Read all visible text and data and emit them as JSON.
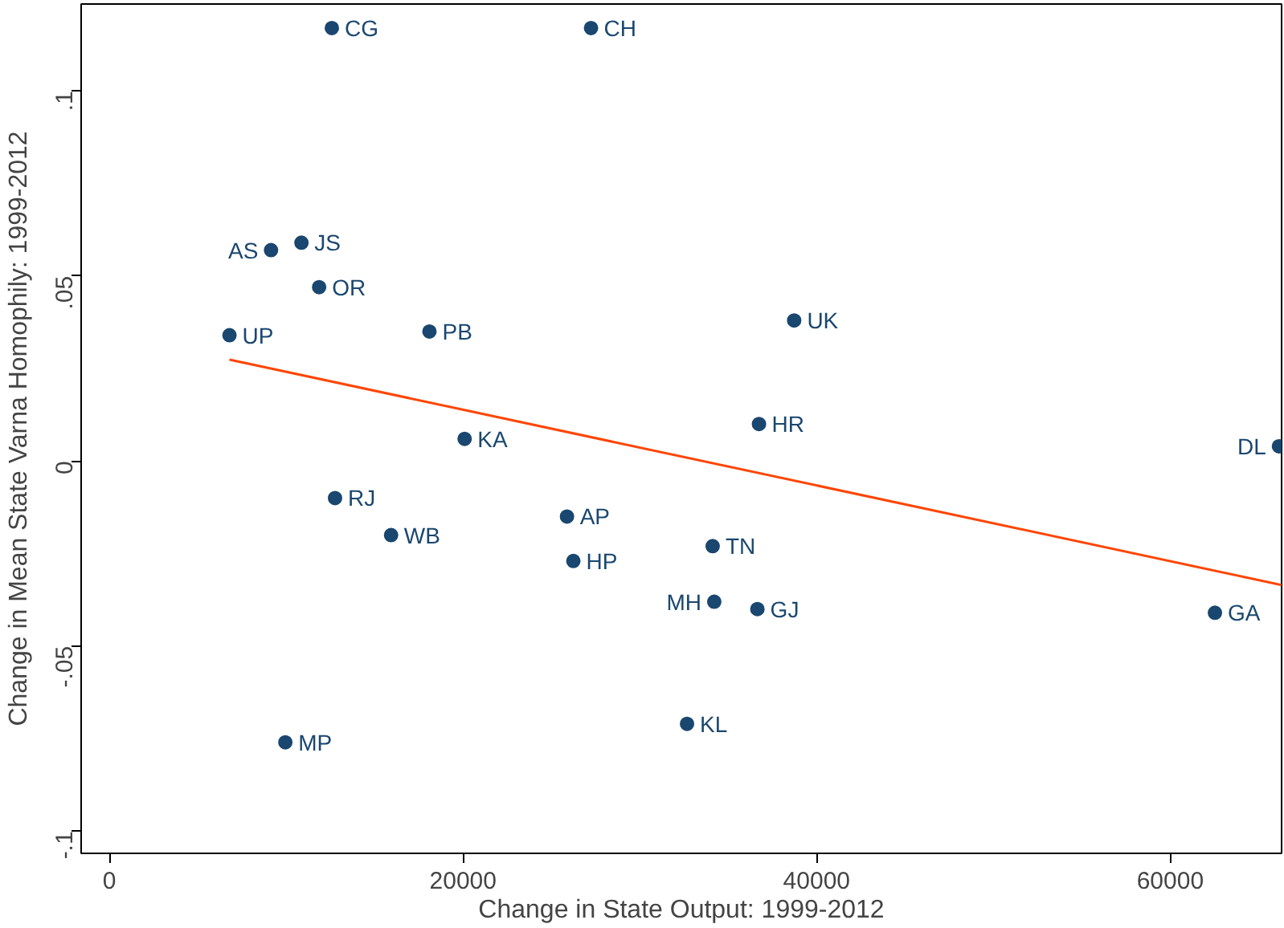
{
  "chart_data": {
    "type": "scatter",
    "xlabel": "Change in State Output: 1999-2012",
    "ylabel": "Change in Mean State Varna Homophily: 1999-2012",
    "xlim": [
      -1600,
      66300
    ],
    "ylim": [
      -0.106,
      0.1235
    ],
    "xticks": [
      0,
      20000,
      40000,
      60000
    ],
    "yticks": [
      {
        "value": -0.1,
        "label": "-.1"
      },
      {
        "value": -0.05,
        "label": "-.05"
      },
      0,
      {
        "value": 0.05,
        "label": ".05"
      },
      {
        "value": 0.1,
        "label": ".1"
      }
    ],
    "grid": false,
    "marker": "circle",
    "series": [
      {
        "color": "#1a476f",
        "x": [
          12580,
          27240,
          9140,
          10860,
          11860,
          6790,
          18100,
          38730,
          20090,
          36740,
          66150,
          12760,
          15930,
          25880,
          26240,
          34120,
          34210,
          36650,
          62530,
          32670,
          9950
        ],
        "values": [
          0.117,
          0.117,
          0.057,
          0.059,
          0.047,
          0.034,
          0.035,
          0.038,
          0.006,
          0.01,
          0.004,
          -0.01,
          -0.02,
          -0.015,
          -0.027,
          -0.023,
          -0.038,
          -0.04,
          -0.041,
          -0.071,
          -0.076
        ],
        "value_labels": [
          "CG",
          "CH",
          "AS",
          "JS",
          "OR",
          "UP",
          "PB",
          "UK",
          "KA",
          "HR",
          "DL",
          "RJ",
          "WB",
          "AP",
          "HP",
          "TN",
          "MH",
          "GJ",
          "GA",
          "KL",
          "MP"
        ]
      },
      {
        "type": "line",
        "marker": "none",
        "color": "#ff4500",
        "x": [
          6790,
          66300
        ],
        "values": [
          0.0274,
          -0.0335
        ]
      }
    ]
  }
}
